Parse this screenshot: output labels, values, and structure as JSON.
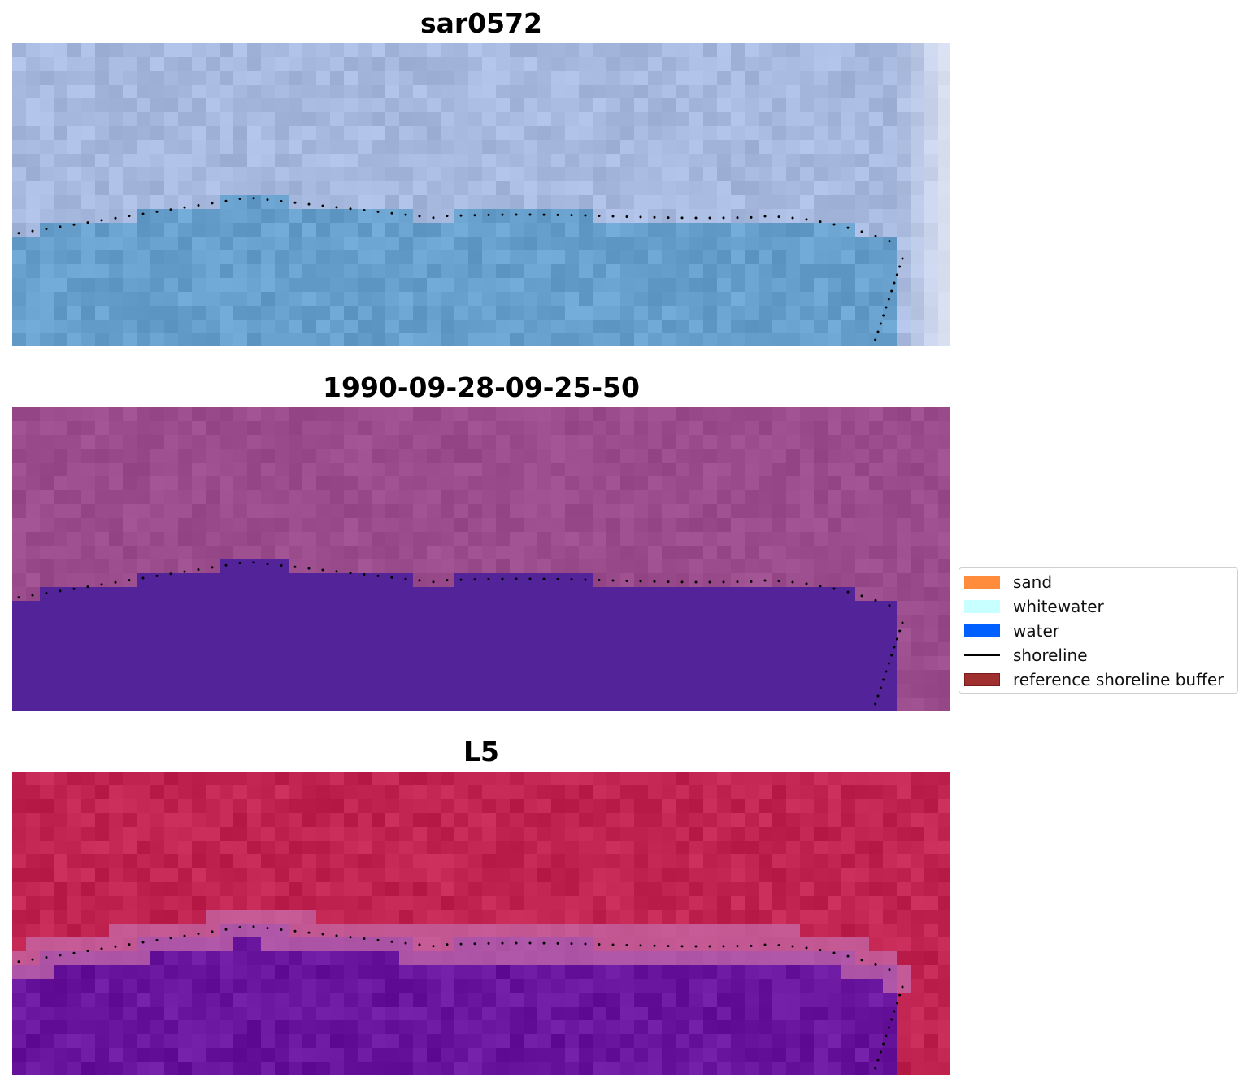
{
  "panels": [
    {
      "id": "sar",
      "title": "sar0572"
    },
    {
      "id": "date",
      "title": "1990-09-28-09-25-50"
    },
    {
      "id": "l5",
      "title": "L5"
    }
  ],
  "legend": {
    "items": [
      {
        "label": "sand",
        "kind": "patch",
        "color": "#ff8c3a"
      },
      {
        "label": "whitewater",
        "kind": "patch",
        "color": "#c8ffff"
      },
      {
        "label": "water",
        "kind": "patch",
        "color": "#0060ff"
      },
      {
        "label": "shoreline",
        "kind": "line",
        "color": "#000000"
      },
      {
        "label": "reference shoreline buffer",
        "kind": "patch",
        "color": "#a03030",
        "edge": "#7a1a1a"
      }
    ]
  },
  "colors": {
    "sar_land": "#a7b9df",
    "sar_water": "#67a0cc",
    "date_land": "#9a4c8c",
    "date_water": "#53239a",
    "l5_land": "#c22452",
    "l5_water": "#6a159e",
    "l5_buffer": "#c56aaa",
    "shoreline_dots": "#000000"
  }
}
